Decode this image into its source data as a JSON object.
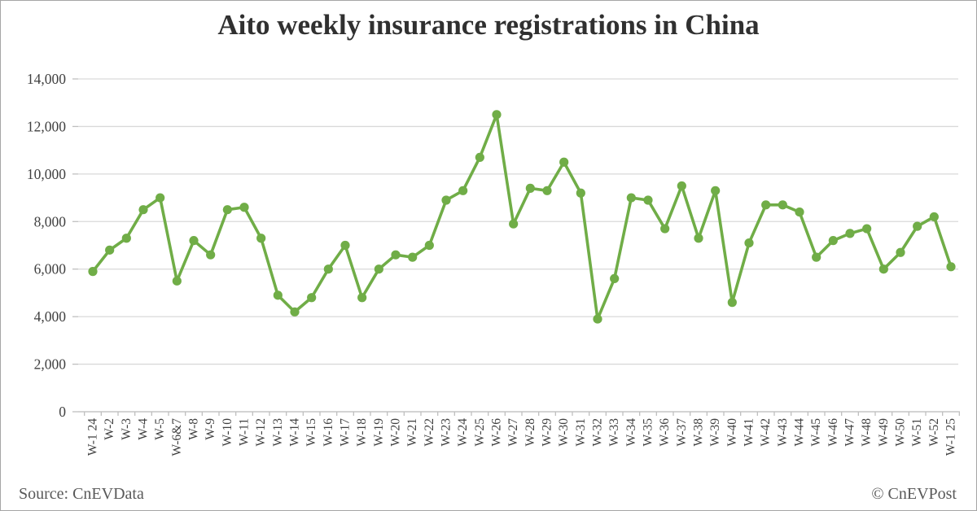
{
  "chart_data": {
    "type": "line",
    "title": "Aito weekly insurance registrations in China",
    "categories": [
      "W-1 24",
      "W-2",
      "W-3",
      "W-4",
      "W-5",
      "W-6&7",
      "W-8",
      "W-9",
      "W-10",
      "W-11",
      "W-12",
      "W-13",
      "W-14",
      "W-15",
      "W-16",
      "W-17",
      "W-18",
      "W-19",
      "W-20",
      "W-21",
      "W-22",
      "W-23",
      "W-24",
      "W-25",
      "W-26",
      "W-27",
      "W-28",
      "W-29",
      "W-30",
      "W-31",
      "W-32",
      "W-33",
      "W-34",
      "W-35",
      "W-36",
      "W-37",
      "W-38",
      "W-39",
      "W-40",
      "W-41",
      "W-42",
      "W-43",
      "W-44",
      "W-45",
      "W-46",
      "W-47",
      "W-48",
      "W-49",
      "W-50",
      "W-51",
      "W-52",
      "W-1 25"
    ],
    "values": [
      5900,
      6800,
      7300,
      8500,
      9000,
      5500,
      7200,
      6600,
      8500,
      8600,
      7300,
      4900,
      4200,
      4800,
      6000,
      7000,
      4800,
      6000,
      6600,
      6500,
      7000,
      8900,
      9300,
      10700,
      12500,
      7900,
      9400,
      9300,
      10500,
      9200,
      3900,
      5600,
      9000,
      8900,
      7700,
      9500,
      7300,
      9300,
      4600,
      7100,
      8700,
      8700,
      8400,
      6500,
      7200,
      7500,
      7700,
      6000,
      6700,
      7800,
      8200,
      6100
    ],
    "ylim": [
      0,
      14000
    ],
    "ytick_step": 2000,
    "ytick_labels": [
      "0",
      "2,000",
      "4,000",
      "6,000",
      "8,000",
      "10,000",
      "12,000",
      "14,000"
    ],
    "xlabel": "",
    "ylabel": "",
    "grid": true,
    "legend_position": "none",
    "line_color": "#70ad47"
  },
  "footer": {
    "source": "Source: CnEVData",
    "credit": "© CnEVPost"
  },
  "colors": {
    "background": "#ffffff",
    "grid": "#d9d9d9",
    "axis": "#bfbfbf",
    "tick_label": "#404040",
    "title": "#303030",
    "footer_text": "#595959",
    "border": "#a6a6a6",
    "line": "#70ad47"
  }
}
